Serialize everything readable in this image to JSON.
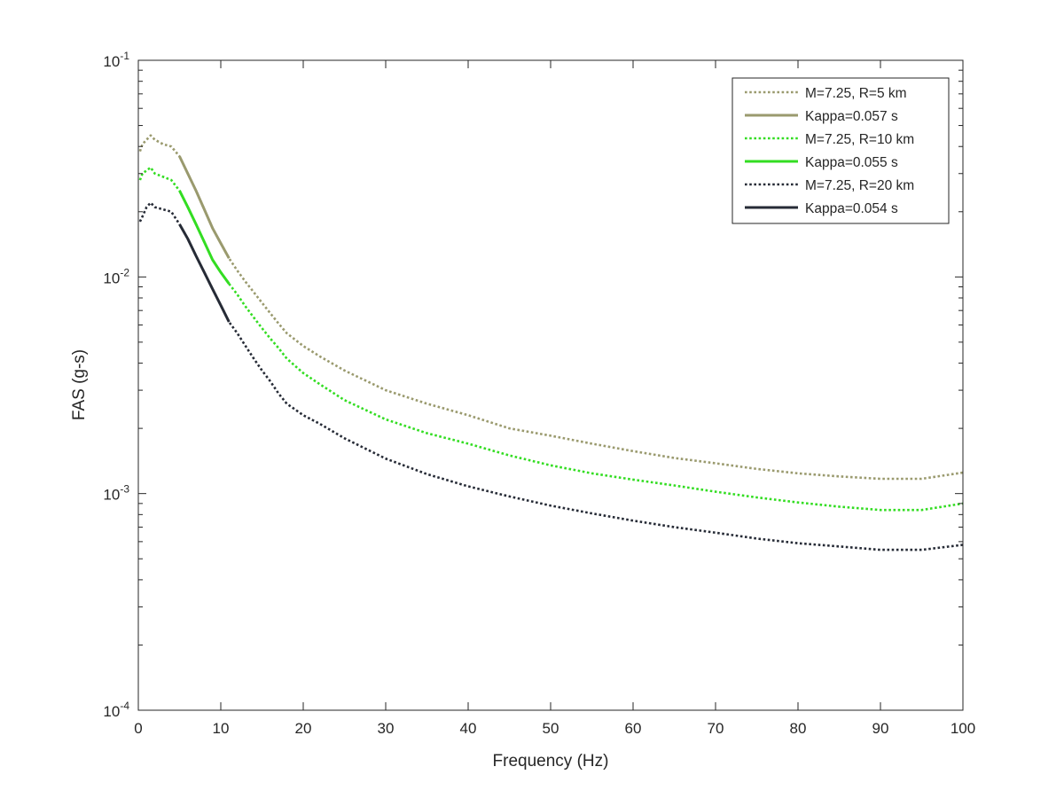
{
  "chart_data": {
    "type": "line",
    "xlabel": "Frequency (Hz)",
    "ylabel": "FAS (g-s)",
    "xlim": [
      0,
      100
    ],
    "ylim": [
      0.0001,
      0.1
    ],
    "yscale": "log",
    "grid": false,
    "legend_location": "top-right",
    "x_ticks": [
      0,
      10,
      20,
      30,
      40,
      50,
      60,
      70,
      80,
      90,
      100
    ],
    "x_tick_labels": [
      "0",
      "10",
      "20",
      "30",
      "40",
      "50",
      "60",
      "70",
      "80",
      "90",
      "100"
    ],
    "y_ticks": [
      0.0001,
      0.001,
      0.01,
      0.1
    ],
    "y_tick_labels": [
      {
        "base": "10",
        "exp": "-4"
      },
      {
        "base": "10",
        "exp": "-3"
      },
      {
        "base": "10",
        "exp": "-2"
      },
      {
        "base": "10",
        "exp": "-1"
      }
    ],
    "series": [
      {
        "name": "M=7.25, R=5 km",
        "style": "dotted",
        "color": "#9a9a6e",
        "x": [
          0.2,
          0.5,
          1.0,
          1.5,
          2.0,
          3.0,
          4.0,
          5.0,
          6.0,
          7.0,
          8.0,
          9.0,
          10.0,
          11.0,
          12.0,
          13.0,
          14.0,
          15.0,
          16.0,
          17.0,
          18.0,
          20.0,
          22.0,
          25.0,
          30.0,
          35.0,
          40.0,
          45.0,
          50.0,
          55.0,
          60.0,
          65.0,
          70.0,
          75.0,
          80.0,
          85.0,
          90.0,
          95.0,
          100.0
        ],
        "y": [
          0.038,
          0.041,
          0.043,
          0.045,
          0.043,
          0.041,
          0.04,
          0.036,
          0.03,
          0.025,
          0.0205,
          0.0168,
          0.0143,
          0.0122,
          0.0107,
          0.0095,
          0.0085,
          0.0076,
          0.0068,
          0.0061,
          0.0055,
          0.0048,
          0.0043,
          0.0037,
          0.003,
          0.0026,
          0.0023,
          0.002,
          0.00185,
          0.0017,
          0.00157,
          0.00146,
          0.00138,
          0.0013,
          0.00124,
          0.0012,
          0.00117,
          0.00117,
          0.00125
        ]
      },
      {
        "name": "Kappa=0.057 s",
        "style": "solid",
        "color": "#9a9a6e",
        "x": [
          5.0,
          6.0,
          7.0,
          8.0,
          9.0,
          10.0,
          11.0
        ],
        "y": [
          0.036,
          0.03,
          0.025,
          0.0205,
          0.0168,
          0.0143,
          0.0122
        ]
      },
      {
        "name": "M=7.25, R=10 km",
        "style": "dotted",
        "color": "#33dd22",
        "x": [
          0.2,
          0.5,
          1.0,
          1.5,
          2.0,
          3.0,
          4.0,
          5.0,
          6.0,
          7.0,
          8.0,
          9.0,
          10.0,
          11.0,
          12.0,
          13.0,
          14.0,
          15.0,
          16.0,
          17.0,
          18.0,
          20.0,
          22.0,
          25.0,
          30.0,
          35.0,
          40.0,
          45.0,
          50.0,
          55.0,
          60.0,
          65.0,
          70.0,
          75.0,
          80.0,
          85.0,
          90.0,
          95.0,
          100.0
        ],
        "y": [
          0.028,
          0.03,
          0.031,
          0.032,
          0.03,
          0.029,
          0.028,
          0.025,
          0.021,
          0.0175,
          0.0145,
          0.012,
          0.0105,
          0.0093,
          0.0083,
          0.0073,
          0.0065,
          0.0058,
          0.0052,
          0.0047,
          0.0042,
          0.0036,
          0.0032,
          0.0027,
          0.0022,
          0.0019,
          0.0017,
          0.0015,
          0.00135,
          0.00124,
          0.00116,
          0.00109,
          0.00102,
          0.00096,
          0.00091,
          0.00087,
          0.00084,
          0.00084,
          0.0009
        ]
      },
      {
        "name": "Kappa=0.055 s",
        "style": "solid",
        "color": "#33dd22",
        "x": [
          5.0,
          6.0,
          7.0,
          8.0,
          9.0,
          10.0,
          11.0
        ],
        "y": [
          0.025,
          0.021,
          0.0175,
          0.0145,
          0.012,
          0.0105,
          0.0093
        ]
      },
      {
        "name": "M=7.25, R=20 km",
        "style": "dotted",
        "color": "#262b36",
        "x": [
          0.2,
          0.5,
          1.0,
          1.5,
          2.0,
          3.0,
          4.0,
          5.0,
          6.0,
          7.0,
          8.0,
          9.0,
          10.0,
          11.0,
          12.0,
          13.0,
          14.0,
          15.0,
          16.0,
          17.0,
          18.0,
          20.0,
          22.0,
          25.0,
          30.0,
          35.0,
          40.0,
          45.0,
          50.0,
          55.0,
          60.0,
          65.0,
          70.0,
          75.0,
          80.0,
          85.0,
          90.0,
          95.0,
          100.0
        ],
        "y": [
          0.018,
          0.019,
          0.021,
          0.022,
          0.021,
          0.0205,
          0.02,
          0.0175,
          0.015,
          0.0125,
          0.0105,
          0.0088,
          0.0074,
          0.0062,
          0.0055,
          0.0048,
          0.0042,
          0.0037,
          0.0033,
          0.0029,
          0.0026,
          0.0023,
          0.0021,
          0.0018,
          0.00145,
          0.00123,
          0.00108,
          0.00097,
          0.00088,
          0.00081,
          0.00075,
          0.0007,
          0.00066,
          0.00062,
          0.00059,
          0.00057,
          0.00055,
          0.00055,
          0.00058
        ]
      },
      {
        "name": "Kappa=0.054 s",
        "style": "solid",
        "color": "#262b36",
        "x": [
          5.0,
          6.0,
          7.0,
          8.0,
          9.0,
          10.0,
          11.0
        ],
        "y": [
          0.0175,
          0.015,
          0.0125,
          0.0105,
          0.0088,
          0.0074,
          0.0062
        ]
      }
    ]
  }
}
